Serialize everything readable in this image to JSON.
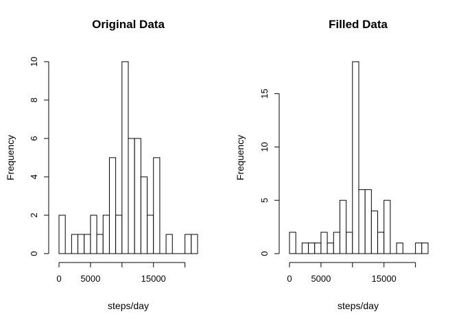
{
  "chart_data": [
    {
      "type": "bar",
      "title": "Original Data",
      "xlabel": "steps/day",
      "ylabel": "Frequency",
      "bin_width": 1000,
      "bin_start": 0,
      "values": [
        2,
        0,
        1,
        1,
        1,
        2,
        1,
        2,
        5,
        2,
        10,
        6,
        6,
        4,
        2,
        5,
        0,
        1,
        0,
        0,
        1,
        1
      ],
      "xlim": [
        0,
        22000
      ],
      "ylim": [
        0,
        10
      ],
      "xticks": [
        0,
        5000,
        10000,
        15000,
        20000
      ],
      "xtick_labels": [
        "0",
        "5000",
        "",
        "15000",
        ""
      ],
      "yticks": [
        0,
        2,
        4,
        6,
        8,
        10
      ],
      "ytick_labels": [
        "0",
        "2",
        "4",
        "6",
        "8",
        "10"
      ],
      "bar_fill": "#ffffff",
      "bar_stroke": "#000000"
    },
    {
      "type": "bar",
      "title": "Filled Data",
      "xlabel": "steps/day",
      "ylabel": "Frequency",
      "bin_width": 1000,
      "bin_start": 0,
      "values": [
        2,
        0,
        1,
        1,
        1,
        2,
        1,
        2,
        5,
        2,
        18,
        6,
        6,
        4,
        2,
        5,
        0,
        1,
        0,
        0,
        1,
        1
      ],
      "xlim": [
        0,
        22000
      ],
      "ylim": [
        0,
        18
      ],
      "xticks": [
        0,
        5000,
        10000,
        15000,
        20000
      ],
      "xtick_labels": [
        "0",
        "5000",
        "",
        "15000",
        ""
      ],
      "yticks": [
        0,
        5,
        10,
        15
      ],
      "ytick_labels": [
        "0",
        "5",
        "10",
        "15"
      ],
      "bar_fill": "#ffffff",
      "bar_stroke": "#000000"
    }
  ]
}
